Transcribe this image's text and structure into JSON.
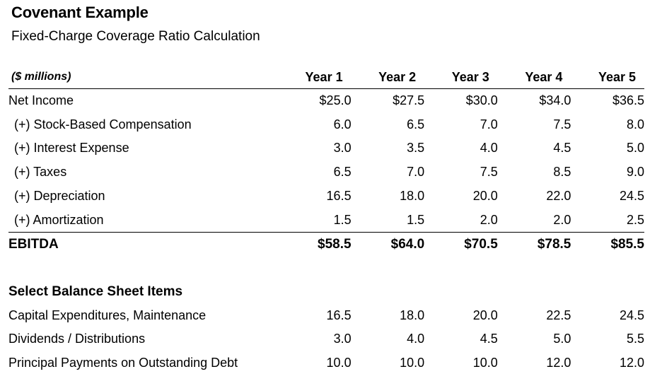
{
  "title": "Covenant Example",
  "subtitle": "Fixed-Charge Coverage Ratio Calculation",
  "units_label": "($ millions)",
  "years": [
    "Year 1",
    "Year 2",
    "Year 3",
    "Year 4",
    "Year 5"
  ],
  "income_rows": [
    {
      "label": "Net Income",
      "values": [
        "$25.0",
        "$27.5",
        "$30.0",
        "$34.0",
        "$36.5"
      ]
    },
    {
      "label": "(+) Stock-Based Compensation",
      "values": [
        "6.0",
        "6.5",
        "7.0",
        "7.5",
        "8.0"
      ]
    },
    {
      "label": "(+) Interest Expense",
      "values": [
        "3.0",
        "3.5",
        "4.0",
        "4.5",
        "5.0"
      ]
    },
    {
      "label": "(+) Taxes",
      "values": [
        "6.5",
        "7.0",
        "7.5",
        "8.5",
        "9.0"
      ]
    },
    {
      "label": "(+) Depreciation",
      "values": [
        "16.5",
        "18.0",
        "20.0",
        "22.0",
        "24.5"
      ]
    },
    {
      "label": "(+) Amortization",
      "values": [
        "1.5",
        "1.5",
        "2.0",
        "2.0",
        "2.5"
      ]
    }
  ],
  "ebitda": {
    "label": "EBITDA",
    "values": [
      "$58.5",
      "$64.0",
      "$70.5",
      "$78.5",
      "$85.5"
    ]
  },
  "balance_section_title": "Select Balance Sheet Items",
  "balance_rows": [
    {
      "label": "Capital Expenditures, Maintenance",
      "values": [
        "16.5",
        "18.0",
        "20.0",
        "22.5",
        "24.5"
      ]
    },
    {
      "label": "Dividends / Distributions",
      "values": [
        "3.0",
        "4.0",
        "4.5",
        "5.0",
        "5.5"
      ]
    },
    {
      "label": "Principal Payments on Outstanding Debt",
      "values": [
        "10.0",
        "10.0",
        "10.0",
        "12.0",
        "12.0"
      ]
    }
  ]
}
